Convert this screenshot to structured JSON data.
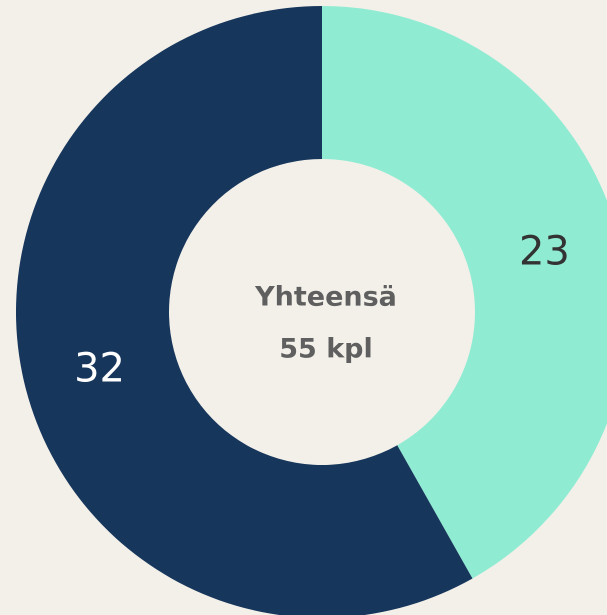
{
  "chart_data": {
    "type": "donut",
    "values": [
      23,
      32
    ],
    "colors": [
      "#90ebd3",
      "#17365c"
    ],
    "label_colors": [
      "#333333",
      "#ffffff"
    ],
    "center_text": [
      "Yhteensä",
      "55 kpl"
    ]
  }
}
